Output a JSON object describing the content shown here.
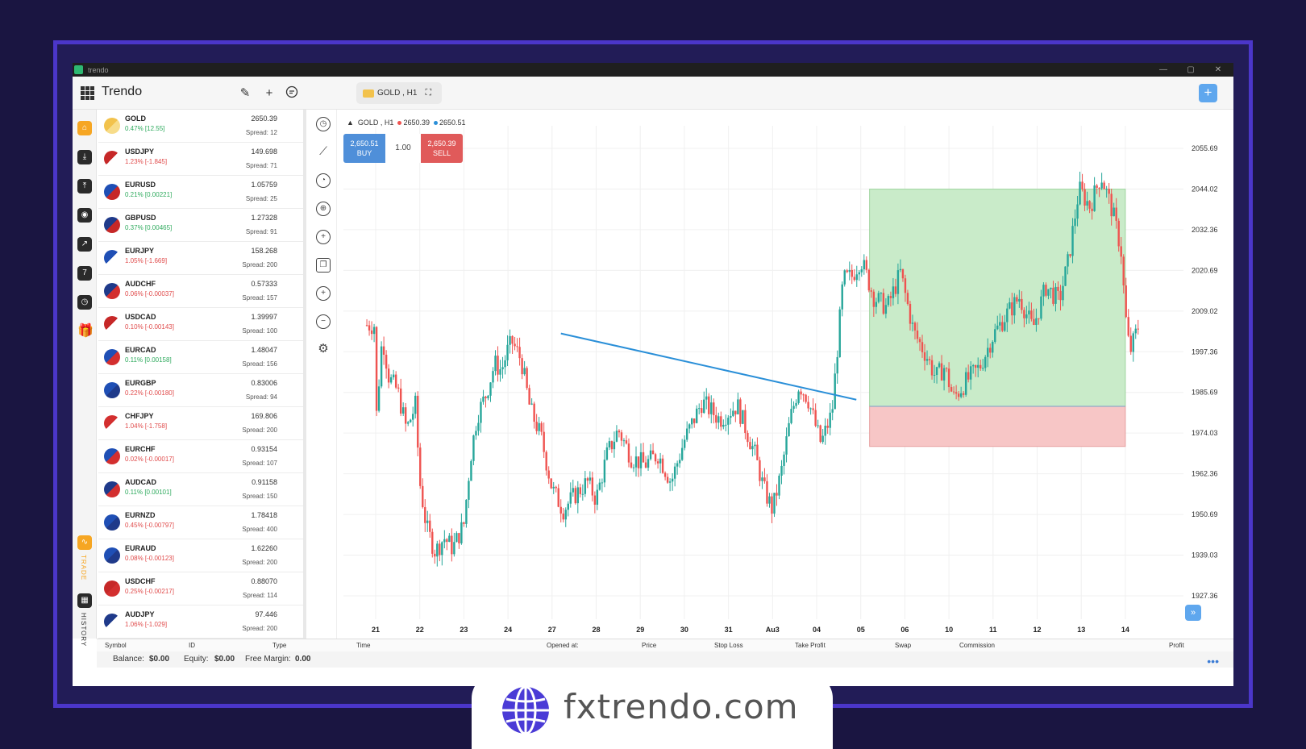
{
  "window": {
    "title": "trendo",
    "controls": [
      "—",
      "▢",
      "✕"
    ]
  },
  "topbar": {
    "brand": "Trendo",
    "symbol_chip": "GOLD , H1",
    "plus": "+"
  },
  "leftbar": {
    "trade_label": "TRADE",
    "history_label": "HISTORY",
    "calendar_day": "7"
  },
  "watchlist": [
    {
      "name": "GOLD",
      "change": "0.47% [12.55]",
      "dir": "up",
      "price": "2650.39",
      "spread": "Spread: 12",
      "flag": "gold"
    },
    {
      "name": "USDJPY",
      "change": "1.23% [-1.845]",
      "dir": "down",
      "price": "149.698",
      "spread": "Spread: 71",
      "flag": "us-jp"
    },
    {
      "name": "EURUSD",
      "change": "0.21% [0.00221]",
      "dir": "up",
      "price": "1.05759",
      "spread": "Spread: 25",
      "flag": "eu-us"
    },
    {
      "name": "GBPUSD",
      "change": "0.37% [0.00465]",
      "dir": "up",
      "price": "1.27328",
      "spread": "Spread: 91",
      "flag": "gb-us"
    },
    {
      "name": "EURJPY",
      "change": "1.05% [-1.669]",
      "dir": "down",
      "price": "158.268",
      "spread": "Spread: 200",
      "flag": "eu-jp"
    },
    {
      "name": "AUDCHF",
      "change": "0.06% [-0.00037]",
      "dir": "down",
      "price": "0.57333",
      "spread": "Spread: 157",
      "flag": "au-ch"
    },
    {
      "name": "USDCAD",
      "change": "0.10% [-0.00143]",
      "dir": "down",
      "price": "1.39997",
      "spread": "Spread: 100",
      "flag": "us-ca"
    },
    {
      "name": "EURCAD",
      "change": "0.11% [0.00158]",
      "dir": "up",
      "price": "1.48047",
      "spread": "Spread: 156",
      "flag": "eu-ca"
    },
    {
      "name": "EURGBP",
      "change": "0.22% [-0.00180]",
      "dir": "down",
      "price": "0.83006",
      "spread": "Spread: 94",
      "flag": "eu-gb"
    },
    {
      "name": "CHFJPY",
      "change": "1.04% [-1.758]",
      "dir": "down",
      "price": "169.806",
      "spread": "Spread: 200",
      "flag": "ch-jp"
    },
    {
      "name": "EURCHF",
      "change": "0.02% [-0.00017]",
      "dir": "down",
      "price": "0.93154",
      "spread": "Spread: 107",
      "flag": "eu-ch"
    },
    {
      "name": "AUDCAD",
      "change": "0.11% [0.00101]",
      "dir": "up",
      "price": "0.91158",
      "spread": "Spread: 150",
      "flag": "au-ca"
    },
    {
      "name": "EURNZD",
      "change": "0.45% [-0.00797]",
      "dir": "down",
      "price": "1.78418",
      "spread": "Spread: 400",
      "flag": "eu-nz"
    },
    {
      "name": "EURAUD",
      "change": "0.08% [-0.00123]",
      "dir": "down",
      "price": "1.62260",
      "spread": "Spread: 200",
      "flag": "eu-au"
    },
    {
      "name": "USDCHF",
      "change": "0.25% [-0.00217]",
      "dir": "down",
      "price": "0.88070",
      "spread": "Spread: 114",
      "flag": "us-ch"
    },
    {
      "name": "AUDJPY",
      "change": "1.06% [-1.029]",
      "dir": "down",
      "price": "97.446",
      "spread": "Spread: 200",
      "flag": "au-jp"
    }
  ],
  "chart": {
    "header": {
      "symbol": "GOLD , H1",
      "bid": "2650.39",
      "ask": "2650.51"
    },
    "buy": {
      "price": "2,650.51",
      "label": "BUY"
    },
    "sell": {
      "price": "2,650.39",
      "label": "SELL"
    },
    "qty": "1.00",
    "ffw": "»"
  },
  "chart_data": {
    "type": "candlestick",
    "y_ticks": [
      "2055.69",
      "2044.02",
      "2032.36",
      "2020.69",
      "2009.02",
      "1997.36",
      "1985.69",
      "1974.03",
      "1962.36",
      "1950.69",
      "1939.03",
      "1927.36"
    ],
    "x_ticks": [
      "21",
      "22",
      "23",
      "24",
      "27",
      "28",
      "29",
      "30",
      "31",
      "Au3",
      "04",
      "05",
      "06",
      "10",
      "11",
      "12",
      "13",
      "14"
    ],
    "ylim": [
      1927.36,
      2055.69
    ],
    "grid": true,
    "colors": {
      "up": "#26a69a",
      "down": "#ef5350",
      "trendline": "#2a8fd8",
      "profit_zone": "#c9ebc9",
      "loss_zone": "#f7c6c6"
    },
    "trendline": {
      "from": {
        "x": 4.2,
        "y": 2002.6
      },
      "to": {
        "x": 10.9,
        "y": 1983.6
      }
    },
    "position": {
      "x_start": 11.2,
      "x_end": 17.0,
      "entry": 1981.7,
      "take_profit": 2044.0,
      "stop_loss": 1970.2
    },
    "close_points": [
      [
        0,
        1976
      ],
      [
        0.15,
        2002
      ],
      [
        0.3,
        1990
      ],
      [
        0.5,
        1986
      ],
      [
        0.7,
        1975
      ],
      [
        0.9,
        1982
      ],
      [
        1.0,
        1960
      ],
      [
        1.15,
        1947
      ],
      [
        1.35,
        1940
      ],
      [
        1.55,
        1944
      ],
      [
        1.75,
        1941
      ],
      [
        2.0,
        1948
      ],
      [
        2.15,
        1967
      ],
      [
        2.3,
        1979
      ],
      [
        2.5,
        1985
      ],
      [
        2.7,
        1994
      ],
      [
        2.85,
        1992
      ],
      [
        3.0,
        1998
      ],
      [
        3.1,
        2000
      ],
      [
        3.3,
        1995
      ],
      [
        3.5,
        1981
      ],
      [
        3.75,
        1973
      ],
      [
        4.0,
        1958
      ],
      [
        4.25,
        1952
      ],
      [
        4.5,
        1956
      ],
      [
        4.8,
        1960
      ],
      [
        5.0,
        1955
      ],
      [
        5.25,
        1968
      ],
      [
        5.5,
        1975
      ],
      [
        5.8,
        1967
      ],
      [
        6.1,
        1965
      ],
      [
        6.4,
        1968
      ],
      [
        6.7,
        1960
      ],
      [
        7.0,
        1972
      ],
      [
        7.4,
        1983
      ],
      [
        7.8,
        1978
      ],
      [
        8.2,
        1982
      ],
      [
        8.6,
        1968
      ],
      [
        8.8,
        1958
      ],
      [
        9.0,
        1952
      ],
      [
        9.2,
        1963
      ],
      [
        9.4,
        1978
      ],
      [
        9.6,
        1988
      ],
      [
        9.8,
        1984
      ],
      [
        10.0,
        1975
      ],
      [
        10.1,
        1971
      ],
      [
        10.35,
        1980
      ],
      [
        10.6,
        2018
      ],
      [
        10.8,
        2019
      ],
      [
        11.0,
        2024
      ],
      [
        11.3,
        2013
      ],
      [
        11.6,
        2010
      ],
      [
        11.9,
        2020
      ],
      [
        12.2,
        2003
      ],
      [
        12.5,
        1996
      ],
      [
        12.7,
        1990
      ],
      [
        12.9,
        1993
      ],
      [
        13.1,
        1984
      ],
      [
        13.4,
        1989
      ],
      [
        13.7,
        1993
      ],
      [
        14.0,
        2002
      ],
      [
        14.3,
        2008
      ],
      [
        14.6,
        2013
      ],
      [
        14.9,
        2004
      ],
      [
        15.2,
        2016
      ],
      [
        15.5,
        2012
      ],
      [
        15.7,
        2023
      ],
      [
        15.95,
        2044
      ],
      [
        16.2,
        2039
      ],
      [
        16.45,
        2048
      ],
      [
        16.7,
        2038
      ],
      [
        16.9,
        2027
      ],
      [
        17.0,
        2008
      ],
      [
        17.1,
        1997
      ],
      [
        17.3,
        2005
      ]
    ]
  },
  "bottom": {
    "columns": [
      "Symbol",
      "ID",
      "Type",
      "Time",
      "Opened at:",
      "Price",
      "Stop Loss",
      "Take Profit",
      "Swap",
      "Commission",
      "Profit"
    ],
    "balance_label": "Balance:",
    "balance": "$0.00",
    "equity_label": "Equity:",
    "equity": "$0.00",
    "margin_label": "Free Margin:",
    "margin": "0.00",
    "more": "•••"
  },
  "badge": {
    "site": "fxtrendo.com"
  }
}
